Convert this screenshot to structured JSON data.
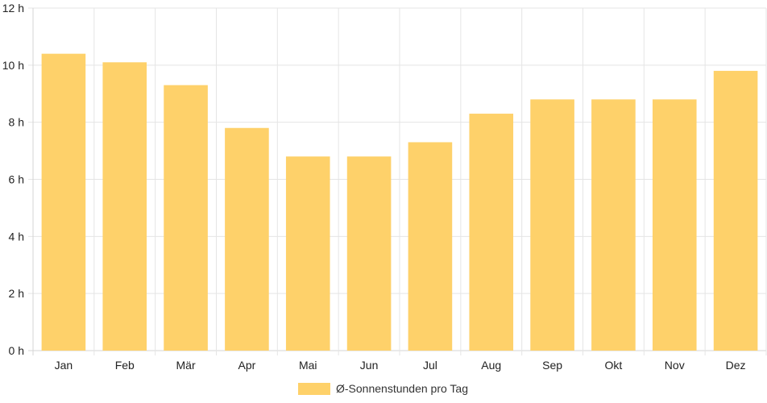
{
  "chart_data": {
    "type": "bar",
    "categories": [
      "Jan",
      "Feb",
      "Mär",
      "Apr",
      "Mai",
      "Jun",
      "Jul",
      "Aug",
      "Sep",
      "Okt",
      "Nov",
      "Dez"
    ],
    "series": [
      {
        "name": "Ø-Sonnenstunden pro Tag",
        "values": [
          10.4,
          10.1,
          9.3,
          7.8,
          6.8,
          6.8,
          7.3,
          8.3,
          8.8,
          8.8,
          8.8,
          9.8
        ]
      }
    ],
    "y_ticks": [
      "0 h",
      "2 h",
      "4 h",
      "6 h",
      "8 h",
      "10 h",
      "12 h"
    ],
    "ylim": [
      0,
      12
    ],
    "grid": true,
    "legend_position": "bottom",
    "colors": {
      "bar": "#fed16a",
      "grid": "#e5e5e5",
      "axis": "#d4d4d4"
    }
  }
}
